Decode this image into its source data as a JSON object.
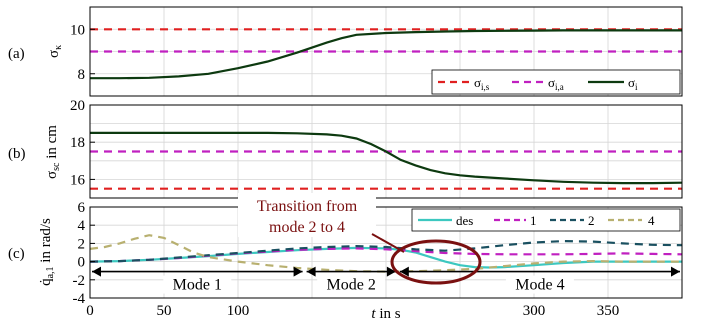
{
  "chart_data": [
    {
      "panel_label": "(a)",
      "type": "line",
      "ylabel": "σ_κ",
      "xlim": [
        0,
        400
      ],
      "ylim": [
        7,
        11
      ],
      "yticks": [
        8,
        10
      ],
      "grid": true,
      "legend": {
        "placement": "bottom-right"
      },
      "series": [
        {
          "name": "σ_i,s",
          "color": "#e02020",
          "dash": "dashed",
          "x": [
            0,
            400
          ],
          "y": [
            10,
            10
          ]
        },
        {
          "name": "σ_i,a",
          "color": "#c020c0",
          "dash": "dashed",
          "x": [
            0,
            400
          ],
          "y": [
            9,
            9
          ]
        },
        {
          "name": "σ_i",
          "color": "#0d3a10",
          "dash": "solid",
          "x": [
            0,
            20,
            40,
            60,
            80,
            100,
            120,
            140,
            160,
            170,
            180,
            200,
            220,
            240,
            260,
            280,
            300,
            320,
            340,
            360,
            380,
            400
          ],
          "y": [
            7.8,
            7.8,
            7.82,
            7.88,
            8.0,
            8.25,
            8.55,
            8.95,
            9.4,
            9.6,
            9.75,
            9.83,
            9.87,
            9.9,
            9.92,
            9.93,
            9.94,
            9.95,
            9.95,
            9.95,
            9.95,
            9.95
          ]
        }
      ]
    },
    {
      "panel_label": "(b)",
      "type": "line",
      "ylabel": "σ_sc in cm",
      "xlim": [
        0,
        400
      ],
      "ylim": [
        15,
        20
      ],
      "yticks": [
        16,
        18,
        20
      ],
      "grid": true,
      "series": [
        {
          "color": "#c020c0",
          "dash": "dashed",
          "x": [
            0,
            400
          ],
          "y": [
            17.5,
            17.5
          ]
        },
        {
          "color": "#e02020",
          "dash": "dashed",
          "x": [
            0,
            400
          ],
          "y": [
            15.5,
            15.5
          ]
        },
        {
          "color": "#0d3a10",
          "dash": "solid",
          "x": [
            0,
            40,
            80,
            120,
            140,
            160,
            170,
            180,
            190,
            200,
            210,
            220,
            230,
            240,
            250,
            260,
            280,
            300,
            320,
            340,
            360,
            380,
            400
          ],
          "y": [
            18.5,
            18.5,
            18.5,
            18.5,
            18.48,
            18.42,
            18.35,
            18.2,
            17.9,
            17.5,
            17.05,
            16.75,
            16.5,
            16.33,
            16.22,
            16.15,
            16.05,
            15.95,
            15.87,
            15.82,
            15.8,
            15.8,
            15.82
          ]
        }
      ]
    },
    {
      "panel_label": "(c)",
      "type": "line",
      "ylabel": "q̇_a,1 in rad/s",
      "xlabel": "t in s",
      "xlim": [
        0,
        400
      ],
      "ylim": [
        -4,
        6
      ],
      "yticks": [
        -4,
        -2,
        0,
        2,
        4,
        6
      ],
      "xticks": [
        0,
        50,
        100,
        300,
        350
      ],
      "grid": true,
      "legend": {
        "placement": "top-right"
      },
      "series": [
        {
          "name": "des",
          "color": "#3cc8c0",
          "dash": "solid",
          "x": [
            0,
            20,
            40,
            60,
            80,
            100,
            120,
            140,
            160,
            180,
            200,
            210,
            220,
            230,
            240,
            250,
            260,
            270,
            280,
            300,
            320,
            340,
            360,
            380,
            400
          ],
          "y": [
            0,
            0.05,
            0.2,
            0.4,
            0.6,
            0.85,
            1.05,
            1.25,
            1.4,
            1.5,
            1.45,
            1.3,
            1.0,
            0.5,
            0.0,
            -0.4,
            -0.6,
            -0.65,
            -0.6,
            -0.4,
            -0.15,
            0.0,
            0.0,
            0.0,
            0.0
          ]
        },
        {
          "name": "1",
          "color": "#c020c0",
          "dash": "dashed",
          "x": [
            0,
            20,
            40,
            60,
            80,
            100,
            120,
            140,
            160,
            180,
            200,
            220,
            240,
            260,
            280,
            300,
            320,
            340,
            360,
            380,
            400
          ],
          "y": [
            0,
            0.05,
            0.2,
            0.4,
            0.65,
            0.9,
            1.1,
            1.3,
            1.4,
            1.45,
            1.35,
            1.15,
            0.95,
            0.85,
            0.8,
            0.8,
            0.8,
            0.85,
            0.9,
            0.85,
            0.8
          ]
        },
        {
          "name": "2",
          "color": "#1a5060",
          "dash": "dashed",
          "x": [
            0,
            20,
            40,
            60,
            80,
            100,
            120,
            140,
            160,
            180,
            200,
            220,
            240,
            260,
            280,
            300,
            320,
            340,
            360,
            380,
            400
          ],
          "y": [
            0,
            0.05,
            0.2,
            0.45,
            0.7,
            0.95,
            1.2,
            1.45,
            1.6,
            1.7,
            1.6,
            1.35,
            1.2,
            1.45,
            1.8,
            2.1,
            2.25,
            2.2,
            2.0,
            1.85,
            1.8
          ]
        },
        {
          "name": "4",
          "color": "#b8b070",
          "dash": "dashed",
          "x": [
            0,
            10,
            20,
            30,
            40,
            50,
            60,
            70,
            80,
            100,
            120,
            140,
            160,
            180,
            200,
            220,
            240,
            260,
            280,
            300,
            320,
            340,
            360,
            380,
            400
          ],
          "y": [
            1.4,
            1.6,
            2.0,
            2.5,
            2.9,
            2.6,
            1.8,
            1.0,
            0.5,
            0.0,
            -0.4,
            -0.7,
            -0.9,
            -1.05,
            -1.1,
            -1.05,
            -0.95,
            -0.8,
            -0.5,
            -0.2,
            0.0,
            0.05,
            0.0,
            0.0,
            0.0
          ]
        }
      ],
      "modes": [
        {
          "label": "Mode 1",
          "start": 0,
          "end": 145
        },
        {
          "label": "Mode 2",
          "start": 145,
          "end": 208
        },
        {
          "label": "Mode 4",
          "start": 208,
          "end": 400
        }
      ],
      "annotation": {
        "text_line1": "Transition from",
        "text_line2": "mode 2 to 4",
        "color": "#7a1010",
        "ellipse_center": [
          235,
          -0.2
        ]
      }
    }
  ]
}
